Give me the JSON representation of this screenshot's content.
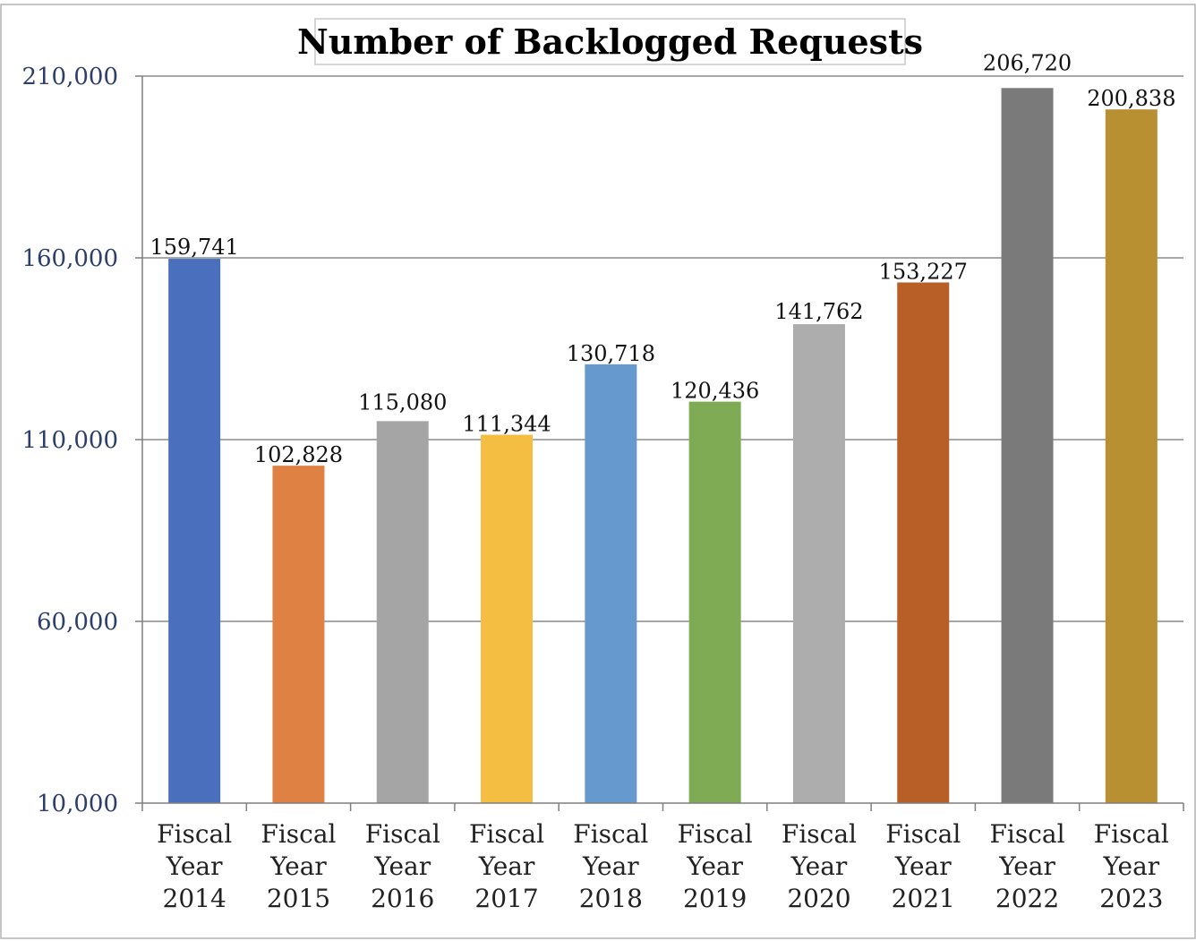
{
  "chart_data": {
    "type": "bar",
    "title": "Number of Backlogged Requests",
    "xlabel": "",
    "ylabel": "",
    "ylim": [
      10000,
      210000
    ],
    "yticks": [
      10000,
      60000,
      110000,
      160000,
      210000
    ],
    "ytick_labels": [
      "10,000",
      "60,000",
      "110,000",
      "160,000",
      "210,000"
    ],
    "grid": true,
    "categories": [
      [
        "Fiscal",
        "Year",
        "2014"
      ],
      [
        "Fiscal",
        "Year",
        "2015"
      ],
      [
        "Fiscal",
        "Year",
        "2016"
      ],
      [
        "Fiscal",
        "Year",
        "2017"
      ],
      [
        "Fiscal",
        "Year",
        "2018"
      ],
      [
        "Fiscal",
        "Year",
        "2019"
      ],
      [
        "Fiscal",
        "Year",
        "2020"
      ],
      [
        "Fiscal",
        "Year",
        "2021"
      ],
      [
        "Fiscal",
        "Year",
        "2022"
      ],
      [
        "Fiscal",
        "Year",
        "2023"
      ]
    ],
    "values": [
      159741,
      102828,
      115080,
      111344,
      130718,
      120436,
      141762,
      153227,
      206720,
      200838
    ],
    "value_labels": [
      "159,741",
      "102,828",
      "115,080",
      "111,344",
      "130,718",
      "120,436",
      "141,762",
      "153,227",
      "206,720",
      "200,838"
    ],
    "colors": [
      "#4a70bd",
      "#df8143",
      "#a5a5a5",
      "#f4be42",
      "#6699ce",
      "#7eab54",
      "#adadad",
      "#b75f27",
      "#7a7a7a",
      "#b88f31"
    ]
  },
  "style": {
    "gridline_color": "#8c8c8c",
    "axis_color": "#7f7f7f",
    "frame_color": "#b3b3b3",
    "title_border_color": "#c8c8c8"
  }
}
